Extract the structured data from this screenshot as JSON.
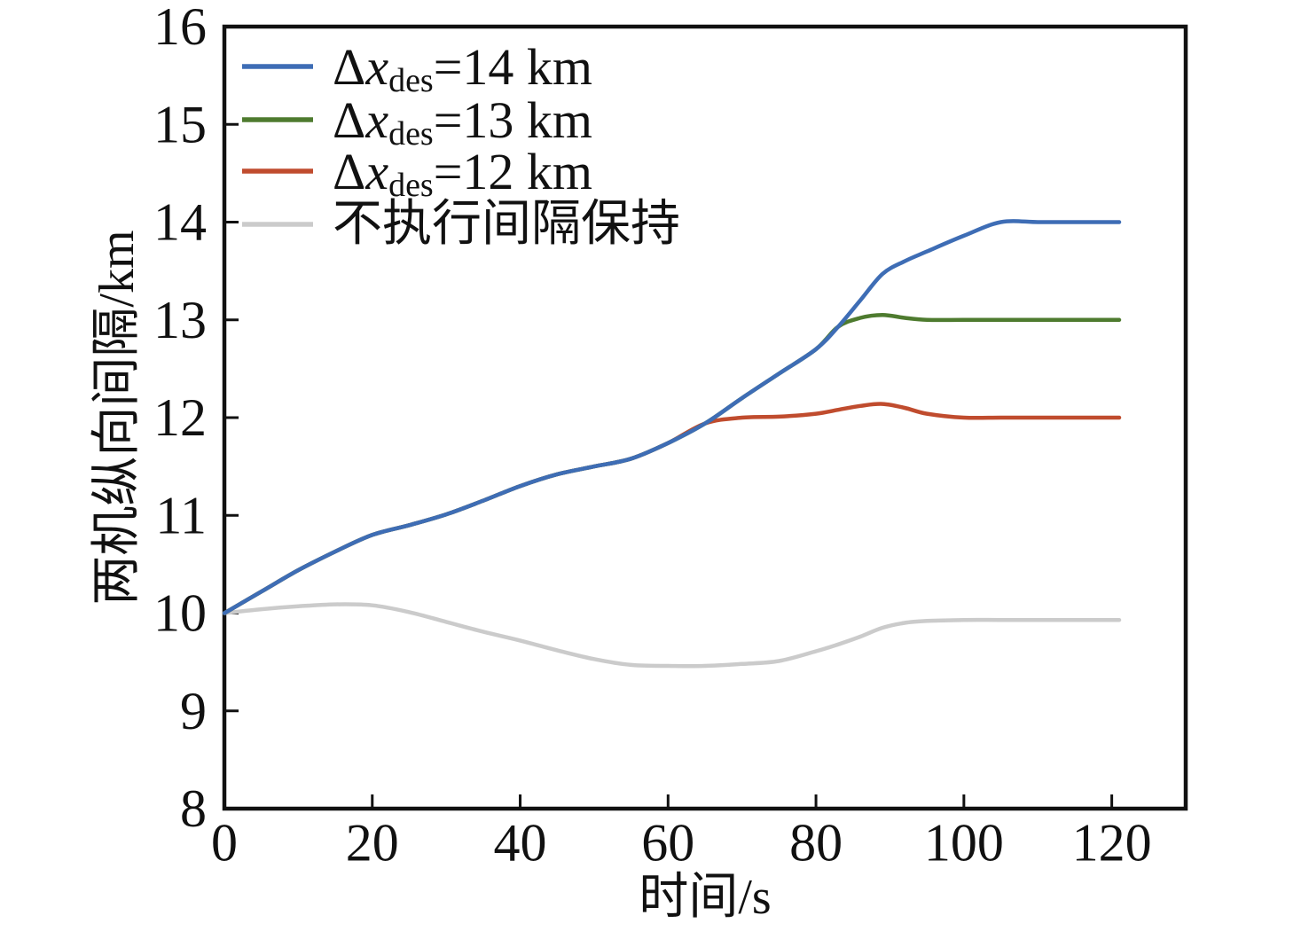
{
  "page": {
    "background": "#ffffff",
    "axis_color": "#111111"
  },
  "chart_data": {
    "type": "line",
    "title": "",
    "xlabel": "时间/s",
    "ylabel": "两机纵向间隔/km",
    "xlim": [
      0,
      130
    ],
    "ylim": [
      8,
      16
    ],
    "x_ticks": [
      0,
      20,
      40,
      60,
      80,
      100,
      120
    ],
    "y_ticks": [
      8,
      9,
      10,
      11,
      12,
      13,
      14,
      15,
      16
    ],
    "grid": false,
    "legend_position": "upper-left",
    "x": [
      0,
      5,
      10,
      15,
      20,
      25,
      30,
      35,
      40,
      45,
      50,
      55,
      60,
      65,
      70,
      75,
      80,
      83,
      86,
      89,
      92,
      95,
      100,
      105,
      110,
      115,
      121
    ],
    "series": [
      {
        "id": "dx14",
        "name": "Δx_des=14 km",
        "color": "#3E6DB5",
        "legend": {
          "sym": "Δ",
          "var": "x",
          "sub": "des",
          "rest": "=14 km"
        },
        "values": [
          10.0,
          10.22,
          10.44,
          10.63,
          10.8,
          10.9,
          11.01,
          11.15,
          11.3,
          11.42,
          11.5,
          11.58,
          11.74,
          11.94,
          12.2,
          12.45,
          12.7,
          12.93,
          13.2,
          13.47,
          13.6,
          13.7,
          13.86,
          14.0,
          14.0,
          14.0,
          14.0
        ]
      },
      {
        "id": "dx13",
        "name": "Δx_des=13 km",
        "color": "#4E7B2F",
        "legend": {
          "sym": "Δ",
          "var": "x",
          "sub": "des",
          "rest": "=13 km"
        },
        "values": [
          10.0,
          10.22,
          10.44,
          10.63,
          10.8,
          10.9,
          11.01,
          11.15,
          11.3,
          11.42,
          11.5,
          11.58,
          11.74,
          11.94,
          12.2,
          12.45,
          12.7,
          12.93,
          13.02,
          13.05,
          13.02,
          13.0,
          13.0,
          13.0,
          13.0,
          13.0,
          13.0
        ]
      },
      {
        "id": "dx12",
        "name": "Δx_des=12 km",
        "color": "#C04C2E",
        "legend": {
          "sym": "Δ",
          "var": "x",
          "sub": "des",
          "rest": "=12 km"
        },
        "values": [
          10.0,
          10.22,
          10.44,
          10.63,
          10.8,
          10.9,
          11.01,
          11.15,
          11.3,
          11.42,
          11.5,
          11.58,
          11.74,
          11.94,
          12.0,
          12.01,
          12.04,
          12.08,
          12.12,
          12.14,
          12.1,
          12.04,
          12.0,
          12.0,
          12.0,
          12.0,
          12.0
        ]
      },
      {
        "id": "baseline",
        "name": "不执行间隔保持",
        "color": "#CBCBCB",
        "legend": {
          "text": "不执行间隔保持"
        },
        "values": [
          10.0,
          10.04,
          10.07,
          10.09,
          10.08,
          10.01,
          9.91,
          9.81,
          9.72,
          9.62,
          9.53,
          9.47,
          9.46,
          9.46,
          9.48,
          9.51,
          9.61,
          9.68,
          9.76,
          9.85,
          9.9,
          9.92,
          9.93,
          9.93,
          9.93,
          9.93,
          9.93
        ]
      }
    ]
  }
}
